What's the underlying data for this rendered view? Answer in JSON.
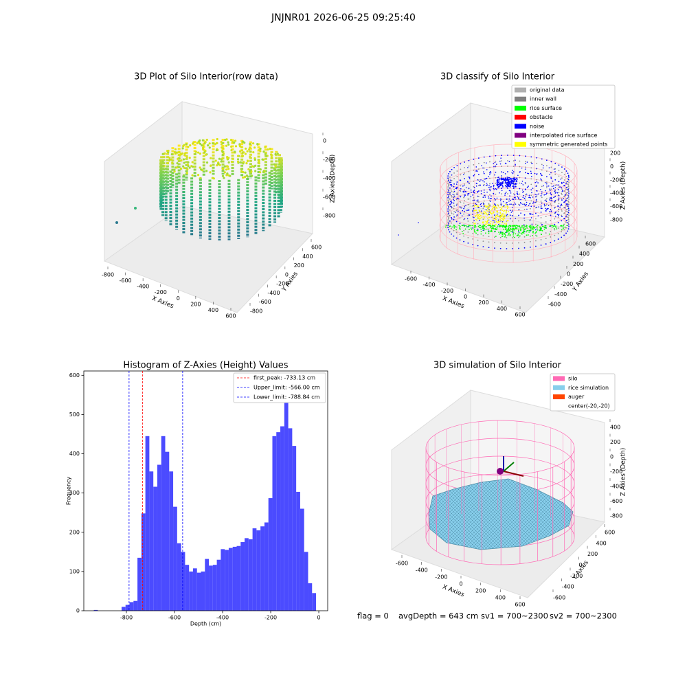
{
  "suptitle": "JNJNR01 2026-06-25 09:25:40",
  "chart_data": [
    {
      "type": "scatter3d",
      "title": "3D Plot of Silo Interior(row data)",
      "xlabel": "X Axies",
      "ylabel": "Y Axies",
      "zlabel": "Z Axies (Depth)",
      "xticks": [
        -800,
        -600,
        -400,
        -200,
        0,
        200,
        400,
        600
      ],
      "yticks": [
        -800,
        -600,
        -400,
        -200,
        0,
        200,
        400,
        600
      ],
      "zticks": [
        -800,
        -600,
        -400,
        -200,
        0
      ]
    },
    {
      "type": "scatter3d",
      "title": "3D classify of Silo Interior",
      "xlabel": "X Axies",
      "ylabel": "Y Axies",
      "zlabel": "Z Axies (Depth)",
      "xticks": [
        -600,
        -400,
        -200,
        0,
        200,
        400,
        600
      ],
      "yticks": [
        -600,
        -400,
        -200,
        0,
        200,
        400,
        600
      ],
      "zticks": [
        -800,
        -600,
        -400,
        -200,
        0,
        200
      ],
      "legend": [
        {
          "name": "original data",
          "color": "#b0b0b0"
        },
        {
          "name": "inner wall",
          "color": "#808080"
        },
        {
          "name": "rice surface",
          "color": "#00ff00"
        },
        {
          "name": "obstacle",
          "color": "#ff0000"
        },
        {
          "name": "noise",
          "color": "#0000ff"
        },
        {
          "name": "interpolated rice surface",
          "color": "#800080"
        },
        {
          "name": "symmetric generated points",
          "color": "#ffff00"
        }
      ]
    },
    {
      "type": "hist",
      "title": "Histogram of Z-Axies (Height) Values",
      "xlabel": "Depth (cm)",
      "ylabel": "Frequency",
      "color": "#4b4bff",
      "xlim": [
        -977,
        37
      ],
      "ylim": [
        0,
        611
      ],
      "xticks": [
        -800,
        -600,
        -400,
        -200,
        0
      ],
      "yticks": [
        0,
        100,
        200,
        300,
        400,
        500,
        600
      ],
      "bins": [
        -935.5,
        -919,
        -902.5,
        -886,
        -869.5,
        -853,
        -836.5,
        -820,
        -803.5,
        -787,
        -770.5,
        -754,
        -737.5,
        -721,
        -704.5,
        -688,
        -671.5,
        -655,
        -638.5,
        -622,
        -605.5,
        -589,
        -572.5,
        -556,
        -539.5,
        -523,
        -506.5,
        -490,
        -473.5,
        -457,
        -440.5,
        -424,
        -407.5,
        -391,
        -374.5,
        -358,
        -341.5,
        -325,
        -308.5,
        -292,
        -275.5,
        -259,
        -242.5,
        -226,
        -209.5,
        -193,
        -176.5,
        -160,
        -143.5,
        -127,
        -110.5,
        -94,
        -77.5,
        -61,
        -44.5,
        -28,
        -11.5
      ],
      "counts": [
        2,
        0,
        0,
        0,
        0,
        0,
        0,
        10,
        15,
        22,
        25,
        135,
        248,
        445,
        355,
        316,
        372,
        445,
        405,
        355,
        265,
        172,
        150,
        117,
        100,
        108,
        97,
        100,
        132,
        115,
        117,
        130,
        157,
        155,
        160,
        163,
        165,
        175,
        185,
        182,
        210,
        205,
        215,
        225,
        287,
        445,
        455,
        470,
        585,
        465,
        420,
        303,
        260,
        150,
        70,
        45
      ],
      "lines": [
        {
          "name": "first_peak: -733.13 cm",
          "value": -733.13,
          "color": "#ff0000"
        },
        {
          "name": "Upper_limit: -566.00 cm",
          "value": -566.0,
          "color": "#0000ff"
        },
        {
          "name": "Lower_limit: -788.84 cm",
          "value": -788.84,
          "color": "#0000ff"
        }
      ]
    },
    {
      "type": "surface3d",
      "title": "3D simulation of Silo Interior",
      "xlabel": "X Axies",
      "ylabel": "Y Axies",
      "zlabel": "Z Axies (Depth)",
      "xticks": [
        -600,
        -400,
        -200,
        0,
        200,
        400,
        600
      ],
      "yticks": [
        -600,
        -400,
        -200,
        0,
        200,
        400,
        600
      ],
      "zticks": [
        -800,
        -600,
        -400,
        -200,
        0,
        200,
        400
      ],
      "legend": [
        {
          "name": "silo",
          "color": "#ff69b4"
        },
        {
          "name": "rice simulation",
          "color": "#87ceeb"
        },
        {
          "name": "auger",
          "color": "#ff4500"
        },
        {
          "name": "center(-20,-20)",
          "color": "#ffffff"
        }
      ]
    }
  ],
  "status": [
    "flag = 0",
    "avgDepth = 643 cm",
    "sv1 = 700~2300",
    "sv2 = 700~2300"
  ]
}
